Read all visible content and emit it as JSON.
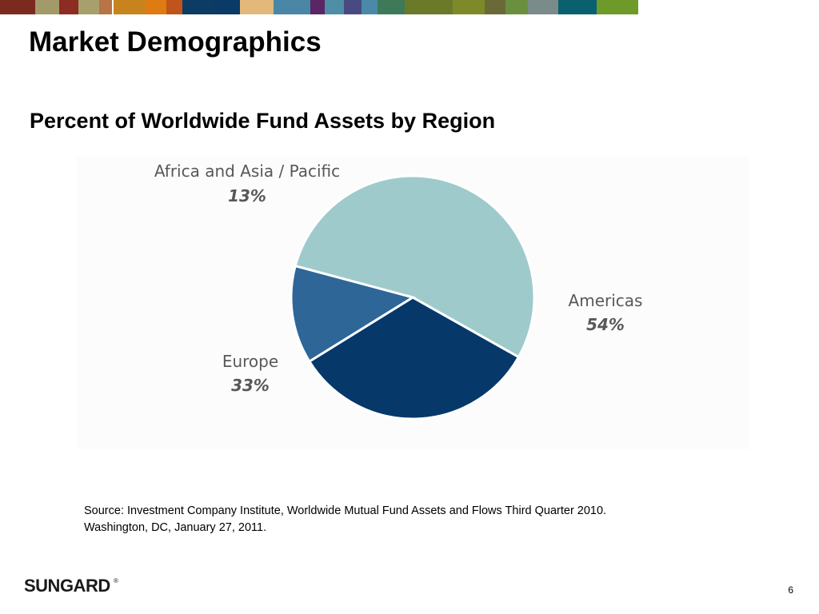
{
  "header": {
    "color_strip": [
      "#7a2a1f",
      "#a39a6a",
      "#8c2c22",
      "#a8a06c",
      "#b87347",
      "#ffffff",
      "#c8841c",
      "#e07a12",
      "#c0541a",
      "#0c3c64",
      "#0a3a66",
      "#e2b97a",
      "#4a86a6",
      "#5a2664",
      "#4e8ea6",
      "#4a4a82",
      "#4a8aa8",
      "#3e7a5a",
      "#6a7a28",
      "#7e8a2a",
      "#6a6a38",
      "#6a903e",
      "#7a8c8a",
      "#0a606e",
      "#6e9a2a"
    ],
    "slide_title": "Market Demographics"
  },
  "chart_data": {
    "type": "pie",
    "title": "Percent of Worldwide Fund Assets by Region",
    "slices": [
      {
        "label": "Americas",
        "value": 54,
        "display": "54%",
        "color": "#9ecacc"
      },
      {
        "label": "Europe",
        "value": 33,
        "display": "33%",
        "color": "#06386a"
      },
      {
        "label": "Africa and Asia / Pacific",
        "value": 13,
        "display": "13%",
        "color": "#2e6698"
      }
    ]
  },
  "footer": {
    "source_line1": "Source:  Investment Company Institute, Worldwide  Mutual Fund Assets and Flows Third Quarter 2010.",
    "source_line2": "Washington, DC, January 27, 2011.",
    "logo_text": "SUNGARD",
    "logo_mark": "®",
    "page_number": "6"
  }
}
